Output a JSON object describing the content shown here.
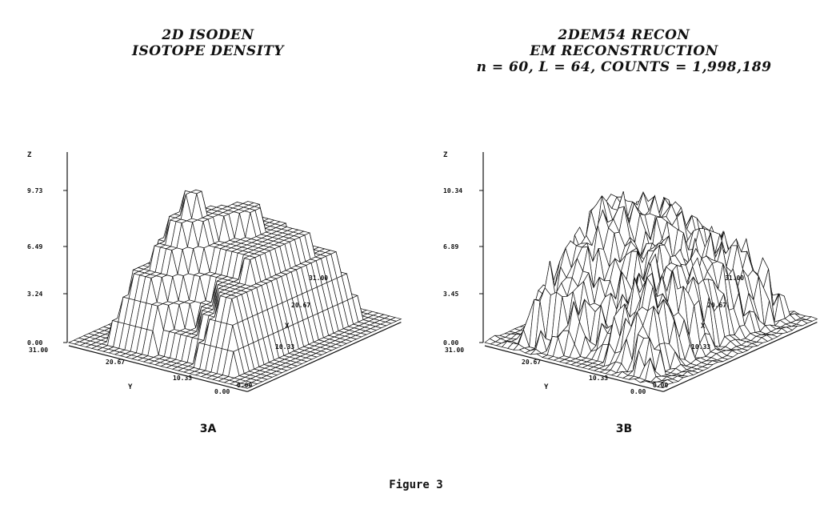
{
  "panels": [
    {
      "id": "3A",
      "title_lines": [
        "2D  ISODEN",
        "ISOTOPE DENSITY"
      ],
      "z_axis": {
        "name": "Z",
        "ticks": [
          "9.73",
          "6.49",
          "3.24",
          "0.00"
        ]
      },
      "y_axis": {
        "name": "Y",
        "ticks": [
          "31.00",
          "20.67",
          "10.33"
        ]
      },
      "x_axis": {
        "name": "X",
        "ticks": [
          "31.00",
          "20.67",
          "10.33",
          "0.00"
        ]
      },
      "corner_label": "0.00",
      "panel_label": "3A",
      "surface": "smooth"
    },
    {
      "id": "3B",
      "title_lines": [
        "2DEM54  RECON",
        "EM RECONSTRUCTION",
        "n = 60, L = 64, COUNTS = 1,998,189"
      ],
      "z_axis": {
        "name": "Z",
        "ticks": [
          "10.34",
          "6.89",
          "3.45",
          "0.00"
        ]
      },
      "y_axis": {
        "name": "Y",
        "ticks": [
          "31.00",
          "20.67",
          "10.33"
        ]
      },
      "x_axis": {
        "name": "X",
        "ticks": [
          "31.00",
          "20.67",
          "10.33",
          "0.00"
        ]
      },
      "corner_label": "0.00",
      "panel_label": "3B",
      "surface": "noisy"
    }
  ],
  "caption": "Figure 3"
}
